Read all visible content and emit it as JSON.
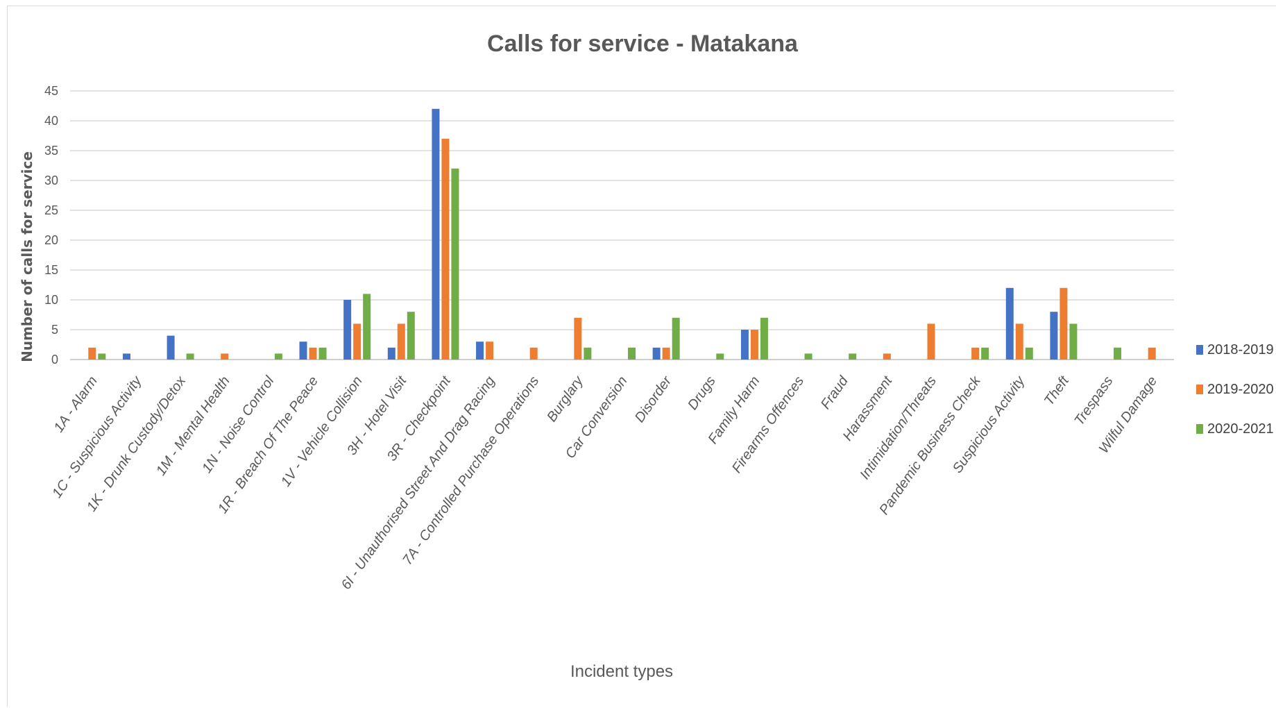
{
  "chart_data": {
    "type": "bar",
    "title": "Calls  for service - Matakana",
    "xlabel": "Incident types",
    "ylabel": "Number of calls for service",
    "ylim": [
      0,
      45
    ],
    "yticks": [
      0,
      5,
      10,
      15,
      20,
      25,
      30,
      35,
      40,
      45
    ],
    "grid": true,
    "legend_position": "right",
    "categories": [
      "1A - Alarm",
      "1C - Suspicious Activity",
      "1K - Drunk Custody/Detox",
      "1M - Mental Health",
      "1N - Noise Control",
      "1R - Breach Of The Peace",
      "1V - Vehicle Collision",
      "3H - Hotel Visit",
      "3R - Checkpoint",
      "6I - Unauthorised Street And Drag Racing",
      "7A - Controlled Purchase Operations",
      "Burglary",
      "Car Conversion",
      "Disorder",
      "Drugs",
      "Family Harm",
      "Firearms Offences",
      "Fraud",
      "Harassment",
      "Intimidation/Threats",
      "Pandemic Business Check",
      "Suspicious Activity",
      "Theft",
      "Trespass",
      "Wilful Damage"
    ],
    "series": [
      {
        "name": "2018-2019",
        "color": "#4472c4",
        "values": [
          0,
          1,
          4,
          0,
          0,
          3,
          10,
          2,
          42,
          3,
          0,
          0,
          0,
          2,
          0,
          5,
          0,
          0,
          0,
          0,
          0,
          12,
          8,
          0,
          0
        ]
      },
      {
        "name": "2019-2020",
        "color": "#ed7d31",
        "values": [
          2,
          0,
          0,
          1,
          0,
          2,
          6,
          6,
          37,
          3,
          2,
          7,
          0,
          2,
          0,
          5,
          0,
          0,
          1,
          6,
          2,
          6,
          12,
          0,
          2
        ]
      },
      {
        "name": "2020-2021",
        "color": "#70ad47",
        "values": [
          1,
          0,
          1,
          0,
          1,
          2,
          11,
          8,
          32,
          0,
          0,
          2,
          2,
          7,
          1,
          7,
          1,
          1,
          0,
          0,
          2,
          2,
          6,
          2,
          0
        ]
      }
    ]
  }
}
